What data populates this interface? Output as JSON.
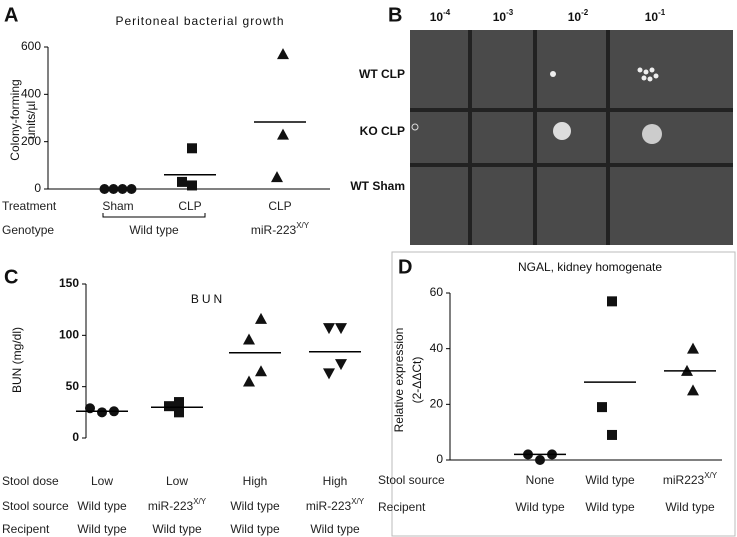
{
  "panel_labels": [
    "A",
    "B",
    "C",
    "D"
  ],
  "photo": {
    "dilutions": [
      {
        "base": "10",
        "exponent": "-4"
      },
      {
        "base": "10",
        "exponent": "-3"
      },
      {
        "base": "10",
        "exponent": "-2"
      },
      {
        "base": "10",
        "exponent": "-1"
      }
    ],
    "rows": [
      "WT CLP",
      "KO CLP",
      "WT Sham"
    ]
  },
  "chart_data": [
    {
      "type": "dot",
      "title": "Peritoneal bacterial growth",
      "y_label": [
        "Colony-forming",
        "units/µl"
      ],
      "ylim": [
        0,
        600
      ],
      "yticks": [
        0,
        200,
        400,
        600
      ],
      "groups": [
        {
          "marker": "circle",
          "values": [
            0,
            0,
            0,
            0
          ],
          "mean": null
        },
        {
          "marker": "square",
          "values": [
            172,
            30,
            15
          ],
          "mean": 60
        },
        {
          "marker": "triangle",
          "values": [
            570,
            50,
            230
          ],
          "mean": 283
        }
      ],
      "rows": [
        {
          "label": "Treatment",
          "cells": [
            {
              "text": "Sham"
            },
            {
              "text": "CLP"
            },
            {
              "text": "CLP"
            }
          ]
        },
        {
          "label": "Genotype",
          "cells": [
            {
              "text": "Wild type",
              "span": 2
            },
            {
              "text": "miR-223",
              "sup": "X/Y"
            }
          ]
        }
      ]
    },
    {
      "type": "dot",
      "title": "BUN",
      "y_label": [
        "BUN (mg/dl)"
      ],
      "ylim": [
        0,
        150
      ],
      "yticks": [
        0,
        50,
        100,
        150
      ],
      "groups": [
        {
          "marker": "circle",
          "values": [
            29,
            25,
            26
          ],
          "mean": 26
        },
        {
          "marker": "square",
          "values": [
            35,
            31,
            25
          ],
          "mean": 30
        },
        {
          "marker": "triangle",
          "values": [
            116,
            96,
            65,
            55
          ],
          "mean": 83
        },
        {
          "marker": "triangle-down",
          "values": [
            107,
            107,
            72,
            63
          ],
          "mean": 84
        }
      ],
      "rows": [
        {
          "label": "Stool dose",
          "cells": [
            {
              "text": "Low"
            },
            {
              "text": "Low"
            },
            {
              "text": "High"
            },
            {
              "text": "High"
            }
          ]
        },
        {
          "label": "Stool source",
          "cells": [
            {
              "text": "Wild type"
            },
            {
              "text": "miR-223",
              "sup": "X/Y"
            },
            {
              "text": "Wild type"
            },
            {
              "text": "miR-223",
              "sup": "X/Y"
            }
          ]
        },
        {
          "label": "Recipent",
          "cells": [
            {
              "text": "Wild type"
            },
            {
              "text": "Wild type"
            },
            {
              "text": "Wild type"
            },
            {
              "text": "Wild type"
            }
          ]
        }
      ]
    },
    {
      "type": "dot",
      "title": "NGAL, kidney homogenate",
      "y_label": [
        "Relative expression",
        "(2-ΔΔCt)"
      ],
      "ylim": [
        0,
        60
      ],
      "yticks": [
        0,
        20,
        40,
        60
      ],
      "groups": [
        {
          "marker": "circle",
          "values": [
            2,
            0,
            2
          ],
          "mean": 2
        },
        {
          "marker": "square",
          "values": [
            57,
            19,
            9
          ],
          "mean": 28
        },
        {
          "marker": "triangle",
          "values": [
            40,
            32,
            25
          ],
          "mean": 32
        }
      ],
      "rows": [
        {
          "label": "Stool source",
          "cells": [
            {
              "text": "None"
            },
            {
              "text": "Wild type"
            },
            {
              "text": "miR223",
              "sup": "X/Y"
            }
          ]
        },
        {
          "label": "Recipent",
          "cells": [
            {
              "text": "Wild type"
            },
            {
              "text": "Wild type"
            },
            {
              "text": "Wild type"
            }
          ]
        }
      ]
    }
  ]
}
